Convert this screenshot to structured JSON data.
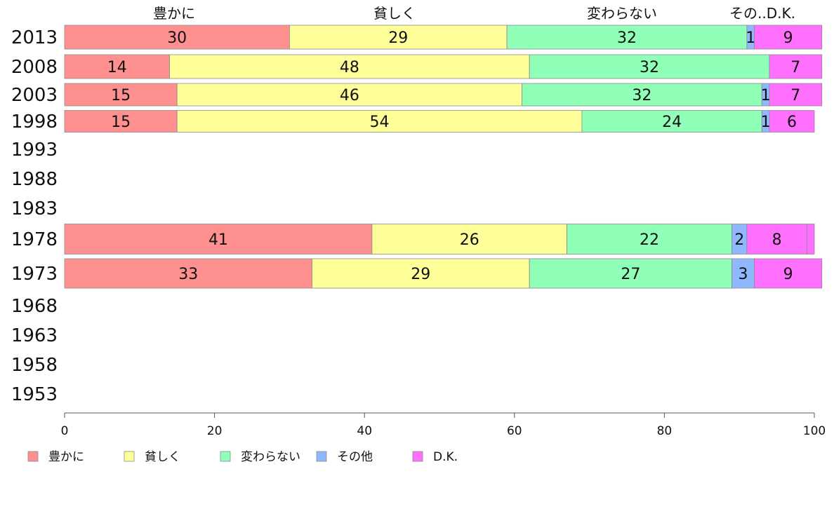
{
  "chart_data": {
    "type": "bar",
    "orientation": "horizontal",
    "stacked": true,
    "column_headers": [
      "豊かに",
      "貧しく",
      "変わらない",
      "その..D.K."
    ],
    "categories": [
      "2013",
      "2008",
      "2003",
      "1998",
      "1993",
      "1988",
      "1983",
      "1978",
      "1973",
      "1968",
      "1963",
      "1958",
      "1953"
    ],
    "series": [
      {
        "name": "豊かに",
        "color": "#ff9090",
        "values": [
          30,
          14,
          15,
          15,
          null,
          null,
          null,
          41,
          33,
          null,
          null,
          null,
          null
        ]
      },
      {
        "name": "貧しく",
        "color": "#ffff99",
        "values": [
          29,
          48,
          46,
          54,
          null,
          null,
          null,
          26,
          29,
          null,
          null,
          null,
          null
        ]
      },
      {
        "name": "変わらない",
        "color": "#90ffb8",
        "values": [
          32,
          32,
          32,
          24,
          null,
          null,
          null,
          22,
          27,
          null,
          null,
          null,
          null
        ]
      },
      {
        "name": "その他",
        "color": "#90b8ff",
        "values": [
          1,
          0,
          1,
          1,
          null,
          null,
          null,
          2,
          3,
          null,
          null,
          null,
          null
        ]
      },
      {
        "name": "D.K.",
        "color": "#ff70ff",
        "values": [
          9,
          7,
          7,
          6,
          null,
          null,
          null,
          8,
          9,
          null,
          null,
          null,
          null
        ]
      }
    ],
    "xlim": [
      0,
      100
    ],
    "xticks": [
      "0",
      "20",
      "40",
      "60",
      "80",
      "100"
    ],
    "legend_position": "bottom-left",
    "grid": false
  }
}
